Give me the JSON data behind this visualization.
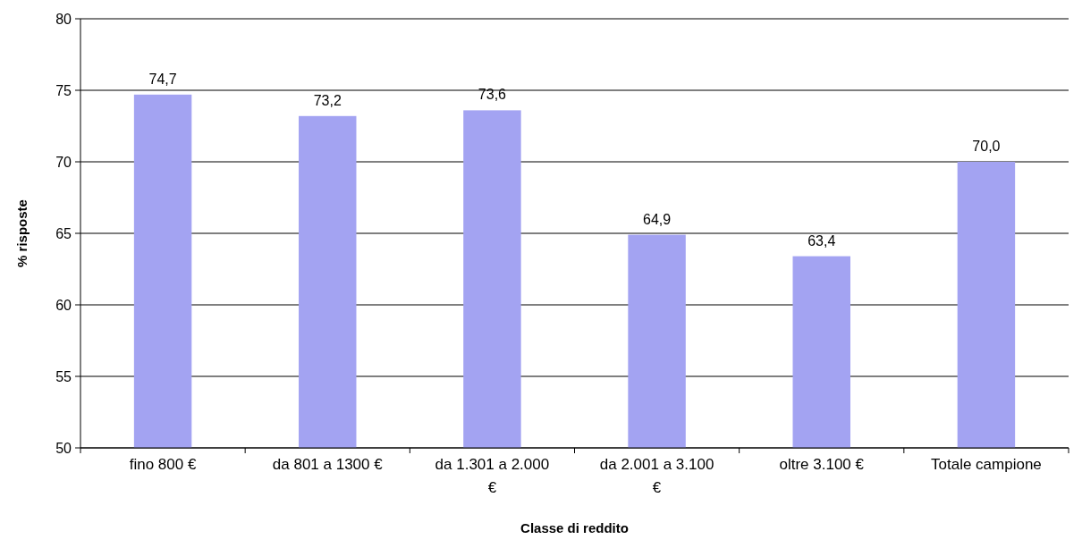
{
  "chart_data": {
    "type": "bar",
    "xlabel": "Classe di reddito",
    "ylabel": "% risposte",
    "categories": [
      "fino 800 €",
      "da 801 a 1300 €",
      "da 1.301 a 2.000 €",
      "da 2.001 a 3.100 €",
      "oltre 3.100 €",
      "Totale campione"
    ],
    "values": [
      74.7,
      73.2,
      73.6,
      64.9,
      63.4,
      70.0
    ],
    "value_labels": [
      "74,7",
      "73,2",
      "73,6",
      "64,9",
      "63,4",
      "70,0"
    ],
    "color": "#a3a3f2",
    "ylim": [
      50,
      80
    ],
    "yticks": [
      50,
      55,
      60,
      65,
      70,
      75,
      80
    ],
    "grid": "y"
  }
}
